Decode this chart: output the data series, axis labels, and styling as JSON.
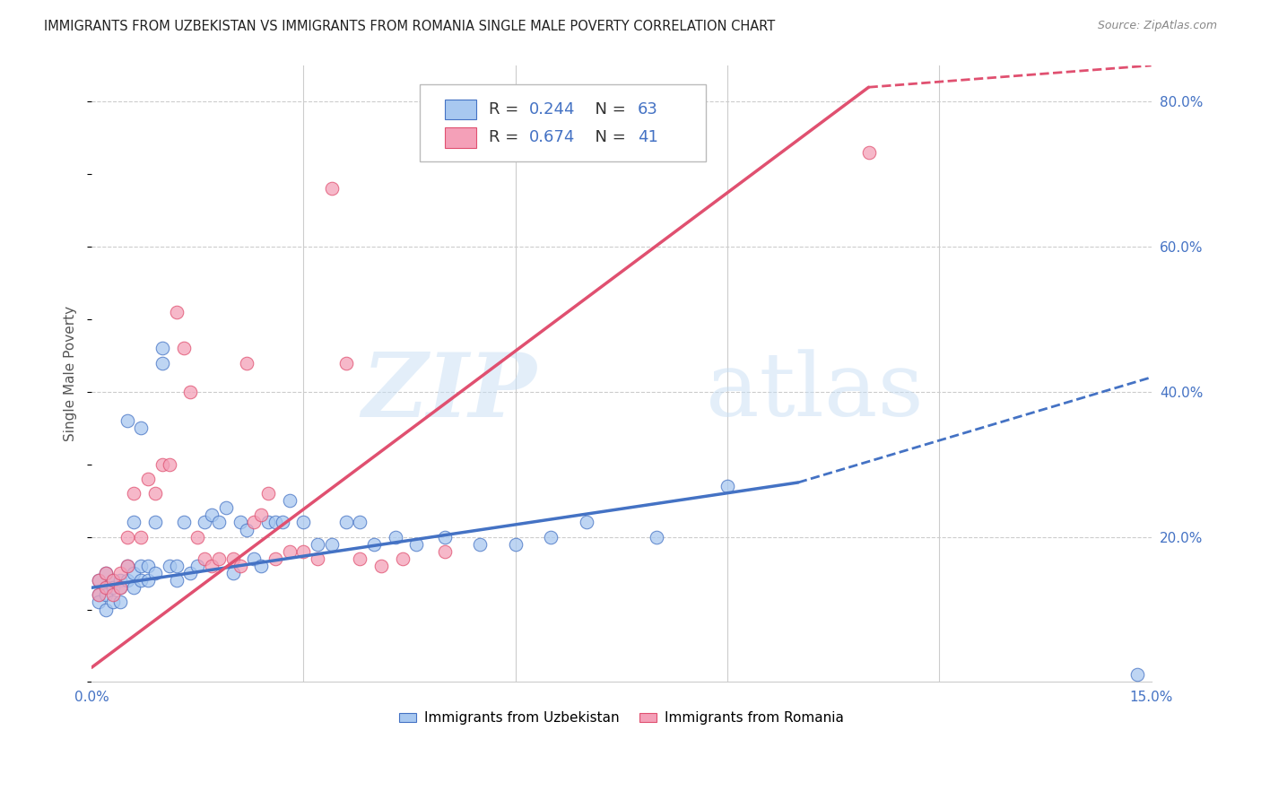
{
  "title": "IMMIGRANTS FROM UZBEKISTAN VS IMMIGRANTS FROM ROMANIA SINGLE MALE POVERTY CORRELATION CHART",
  "source": "Source: ZipAtlas.com",
  "ylabel": "Single Male Poverty",
  "xlim": [
    0.0,
    0.15
  ],
  "ylim": [
    0.0,
    0.85
  ],
  "x_ticks": [
    0.0,
    0.03,
    0.06,
    0.09,
    0.12,
    0.15
  ],
  "x_tick_labels": [
    "0.0%",
    "",
    "",
    "",
    "",
    "15.0%"
  ],
  "y_ticks_right": [
    0.0,
    0.2,
    0.4,
    0.6,
    0.8
  ],
  "y_tick_labels_right": [
    "",
    "20.0%",
    "40.0%",
    "60.0%",
    "80.0%"
  ],
  "legend_label_1": "Immigrants from Uzbekistan",
  "legend_label_2": "Immigrants from Romania",
  "R1": 0.244,
  "N1": 63,
  "R2": 0.674,
  "N2": 41,
  "color_uzbekistan": "#A8C8F0",
  "color_romania": "#F4A0B8",
  "color_line_uzbekistan": "#4472C4",
  "color_line_romania": "#E05070",
  "watermark_zip": "ZIP",
  "watermark_atlas": "atlas",
  "uzbekistan_x": [
    0.001,
    0.001,
    0.001,
    0.002,
    0.002,
    0.002,
    0.002,
    0.003,
    0.003,
    0.003,
    0.004,
    0.004,
    0.004,
    0.005,
    0.005,
    0.005,
    0.006,
    0.006,
    0.006,
    0.007,
    0.007,
    0.007,
    0.008,
    0.008,
    0.009,
    0.009,
    0.01,
    0.01,
    0.011,
    0.012,
    0.012,
    0.013,
    0.014,
    0.015,
    0.016,
    0.017,
    0.018,
    0.019,
    0.02,
    0.021,
    0.022,
    0.023,
    0.024,
    0.025,
    0.026,
    0.027,
    0.028,
    0.03,
    0.032,
    0.034,
    0.036,
    0.038,
    0.04,
    0.043,
    0.046,
    0.05,
    0.055,
    0.06,
    0.065,
    0.07,
    0.08,
    0.09,
    0.148
  ],
  "uzbekistan_y": [
    0.14,
    0.12,
    0.11,
    0.15,
    0.13,
    0.12,
    0.1,
    0.14,
    0.13,
    0.11,
    0.14,
    0.13,
    0.11,
    0.36,
    0.16,
    0.14,
    0.22,
    0.15,
    0.13,
    0.35,
    0.16,
    0.14,
    0.16,
    0.14,
    0.22,
    0.15,
    0.46,
    0.44,
    0.16,
    0.16,
    0.14,
    0.22,
    0.15,
    0.16,
    0.22,
    0.23,
    0.22,
    0.24,
    0.15,
    0.22,
    0.21,
    0.17,
    0.16,
    0.22,
    0.22,
    0.22,
    0.25,
    0.22,
    0.19,
    0.19,
    0.22,
    0.22,
    0.19,
    0.2,
    0.19,
    0.2,
    0.19,
    0.19,
    0.2,
    0.22,
    0.2,
    0.27,
    0.01
  ],
  "romania_x": [
    0.001,
    0.001,
    0.002,
    0.002,
    0.003,
    0.003,
    0.004,
    0.004,
    0.005,
    0.005,
    0.006,
    0.007,
    0.008,
    0.009,
    0.01,
    0.011,
    0.012,
    0.013,
    0.014,
    0.015,
    0.016,
    0.017,
    0.018,
    0.02,
    0.021,
    0.022,
    0.023,
    0.024,
    0.025,
    0.026,
    0.028,
    0.03,
    0.032,
    0.034,
    0.036,
    0.038,
    0.041,
    0.044,
    0.05,
    0.06,
    0.11
  ],
  "romania_y": [
    0.14,
    0.12,
    0.15,
    0.13,
    0.14,
    0.12,
    0.15,
    0.13,
    0.2,
    0.16,
    0.26,
    0.2,
    0.28,
    0.26,
    0.3,
    0.3,
    0.51,
    0.46,
    0.4,
    0.2,
    0.17,
    0.16,
    0.17,
    0.17,
    0.16,
    0.44,
    0.22,
    0.23,
    0.26,
    0.17,
    0.18,
    0.18,
    0.17,
    0.68,
    0.44,
    0.17,
    0.16,
    0.17,
    0.18,
    0.73,
    0.73
  ]
}
